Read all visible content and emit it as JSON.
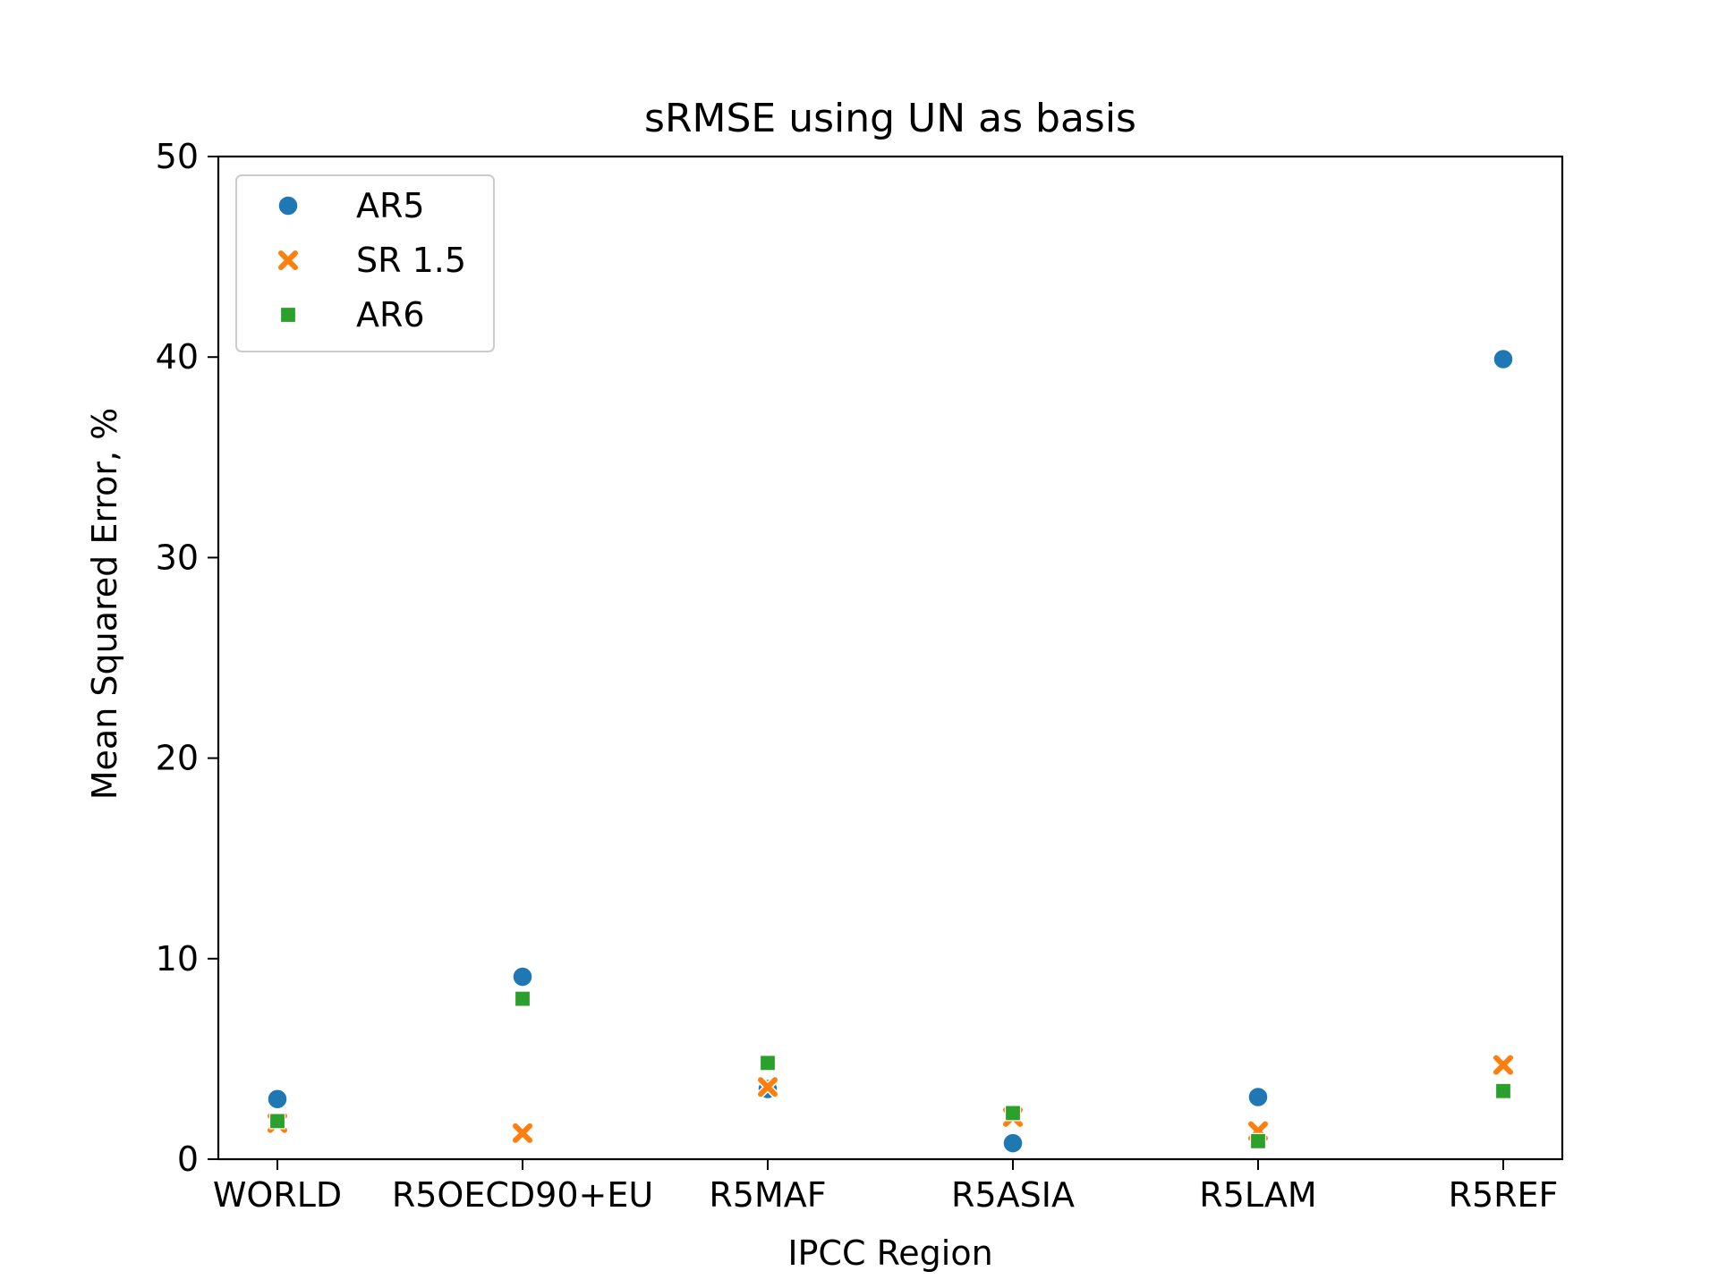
{
  "chart_data": {
    "type": "scatter",
    "title": "sRMSE using UN as basis",
    "xlabel": "IPCC Region",
    "ylabel": "Mean Squared Error, %",
    "categories": [
      "WORLD",
      "R5OECD90+EU",
      "R5MAF",
      "R5ASIA",
      "R5LAM",
      "R5REF"
    ],
    "ylim": [
      0,
      50
    ],
    "yticks": [
      "0",
      "10",
      "20",
      "30",
      "40",
      "50"
    ],
    "grid": false,
    "legend_position": "top-left",
    "series": [
      {
        "name": "AR5",
        "marker": "circle",
        "color": "#1f77b4",
        "values": [
          3.0,
          9.1,
          3.5,
          0.8,
          3.1,
          39.9
        ]
      },
      {
        "name": "SR 1.5",
        "marker": "x",
        "color": "#ff7f0e",
        "values": [
          1.8,
          1.3,
          3.6,
          2.1,
          1.4,
          4.7
        ]
      },
      {
        "name": "AR6",
        "marker": "square",
        "color": "#2ca02c",
        "values": [
          1.9,
          8.0,
          4.8,
          2.3,
          0.9,
          3.4
        ]
      }
    ]
  }
}
